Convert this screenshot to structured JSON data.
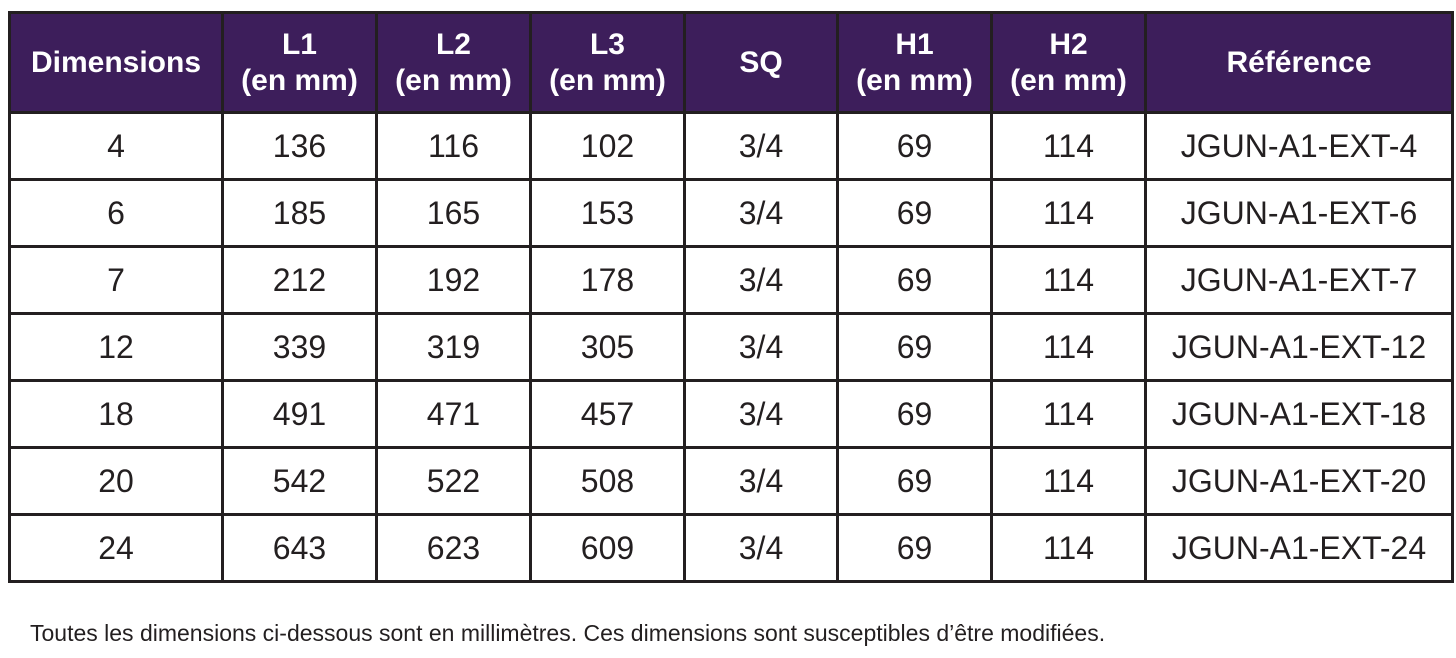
{
  "table": {
    "headers": [
      {
        "line1": "Dimensions",
        "line2": ""
      },
      {
        "line1": "L1",
        "line2": "(en mm)"
      },
      {
        "line1": "L2",
        "line2": "(en mm)"
      },
      {
        "line1": "L3",
        "line2": "(en mm)"
      },
      {
        "line1": "SQ",
        "line2": ""
      },
      {
        "line1": "H1",
        "line2": "(en mm)"
      },
      {
        "line1": "H2",
        "line2": "(en mm)"
      },
      {
        "line1": "Référence",
        "line2": ""
      }
    ],
    "rows": [
      [
        "4",
        "136",
        "116",
        "102",
        "3/4",
        "69",
        "114",
        "JGUN-A1-EXT-4"
      ],
      [
        "6",
        "185",
        "165",
        "153",
        "3/4",
        "69",
        "114",
        "JGUN-A1-EXT-6"
      ],
      [
        "7",
        "212",
        "192",
        "178",
        "3/4",
        "69",
        "114",
        "JGUN-A1-EXT-7"
      ],
      [
        "12",
        "339",
        "319",
        "305",
        "3/4",
        "69",
        "114",
        "JGUN-A1-EXT-12"
      ],
      [
        "18",
        "491",
        "471",
        "457",
        "3/4",
        "69",
        "114",
        "JGUN-A1-EXT-18"
      ],
      [
        "20",
        "542",
        "522",
        "508",
        "3/4",
        "69",
        "114",
        "JGUN-A1-EXT-20"
      ],
      [
        "24",
        "643",
        "623",
        "609",
        "3/4",
        "69",
        "114",
        "JGUN-A1-EXT-24"
      ]
    ]
  },
  "footnote": "Toutes les dimensions ci-dessous sont en millimètres. Ces dimensions sont susceptibles d’être modifiées.",
  "colors": {
    "header_background": "#3d1e5b",
    "header_text": "#ffffff",
    "border": "#231f20"
  }
}
